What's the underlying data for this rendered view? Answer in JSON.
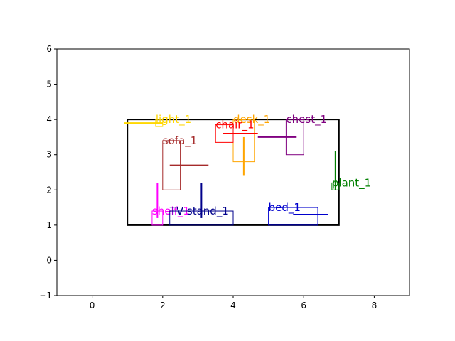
{
  "chart_data": {
    "type": "scatter",
    "title": "",
    "xlabel": "",
    "ylabel": "",
    "xlim": [
      -1,
      9
    ],
    "ylim": [
      -1,
      6
    ],
    "xticks": [
      0,
      2,
      4,
      6,
      8
    ],
    "yticks": [
      -1,
      0,
      1,
      2,
      3,
      4,
      5,
      6
    ],
    "grid": false,
    "room": {
      "x0": 1,
      "y0": 1,
      "x1": 7,
      "y1": 4,
      "color": "#000000"
    },
    "objects": [
      {
        "label": "light_1",
        "color": "#ffd700",
        "box": [
          1.8,
          3.8,
          2.0,
          4.0
        ],
        "lines": [
          [
            0.9,
            3.9,
            2.0,
            3.9
          ]
        ]
      },
      {
        "label": "desk_1",
        "color": "#ffa500",
        "box": [
          4.0,
          2.8,
          4.6,
          4.0
        ],
        "lines": [
          [
            4.3,
            2.4,
            4.3,
            3.5
          ]
        ]
      },
      {
        "label": "chest_1",
        "color": "#800080",
        "box": [
          5.5,
          3.0,
          6.0,
          4.0
        ],
        "lines": [
          [
            4.7,
            3.5,
            5.8,
            3.5
          ]
        ]
      },
      {
        "label": "chair_1",
        "color": "#ff0000",
        "box": [
          3.5,
          3.35,
          4.0,
          3.85
        ],
        "lines": [
          [
            3.7,
            3.6,
            4.7,
            3.6
          ]
        ]
      },
      {
        "label": "sofa_1",
        "color": "#a52a2a",
        "box": [
          2.0,
          2.0,
          2.5,
          3.4
        ],
        "lines": [
          [
            2.2,
            2.7,
            3.3,
            2.7
          ]
        ]
      },
      {
        "label": "plant_1",
        "color": "#008000",
        "box": [
          6.8,
          2.0,
          7.0,
          2.2
        ],
        "lines": [
          [
            6.9,
            2.0,
            6.9,
            3.1
          ]
        ]
      },
      {
        "label": "shelf_1",
        "color": "#ff00ff",
        "box": [
          1.7,
          1.0,
          2.0,
          1.4
        ],
        "lines": [
          [
            1.85,
            1.2,
            1.85,
            2.2
          ]
        ]
      },
      {
        "label": "TV stand_1",
        "color": "#00008b",
        "box": [
          2.2,
          1.0,
          4.0,
          1.4
        ],
        "lines": [
          [
            3.1,
            1.2,
            3.1,
            2.2
          ]
        ]
      },
      {
        "label": "bed_1",
        "color": "#0000cd",
        "box": [
          5.0,
          1.0,
          6.4,
          1.5
        ],
        "lines": [
          [
            5.7,
            1.3,
            6.7,
            1.3
          ]
        ]
      }
    ]
  }
}
